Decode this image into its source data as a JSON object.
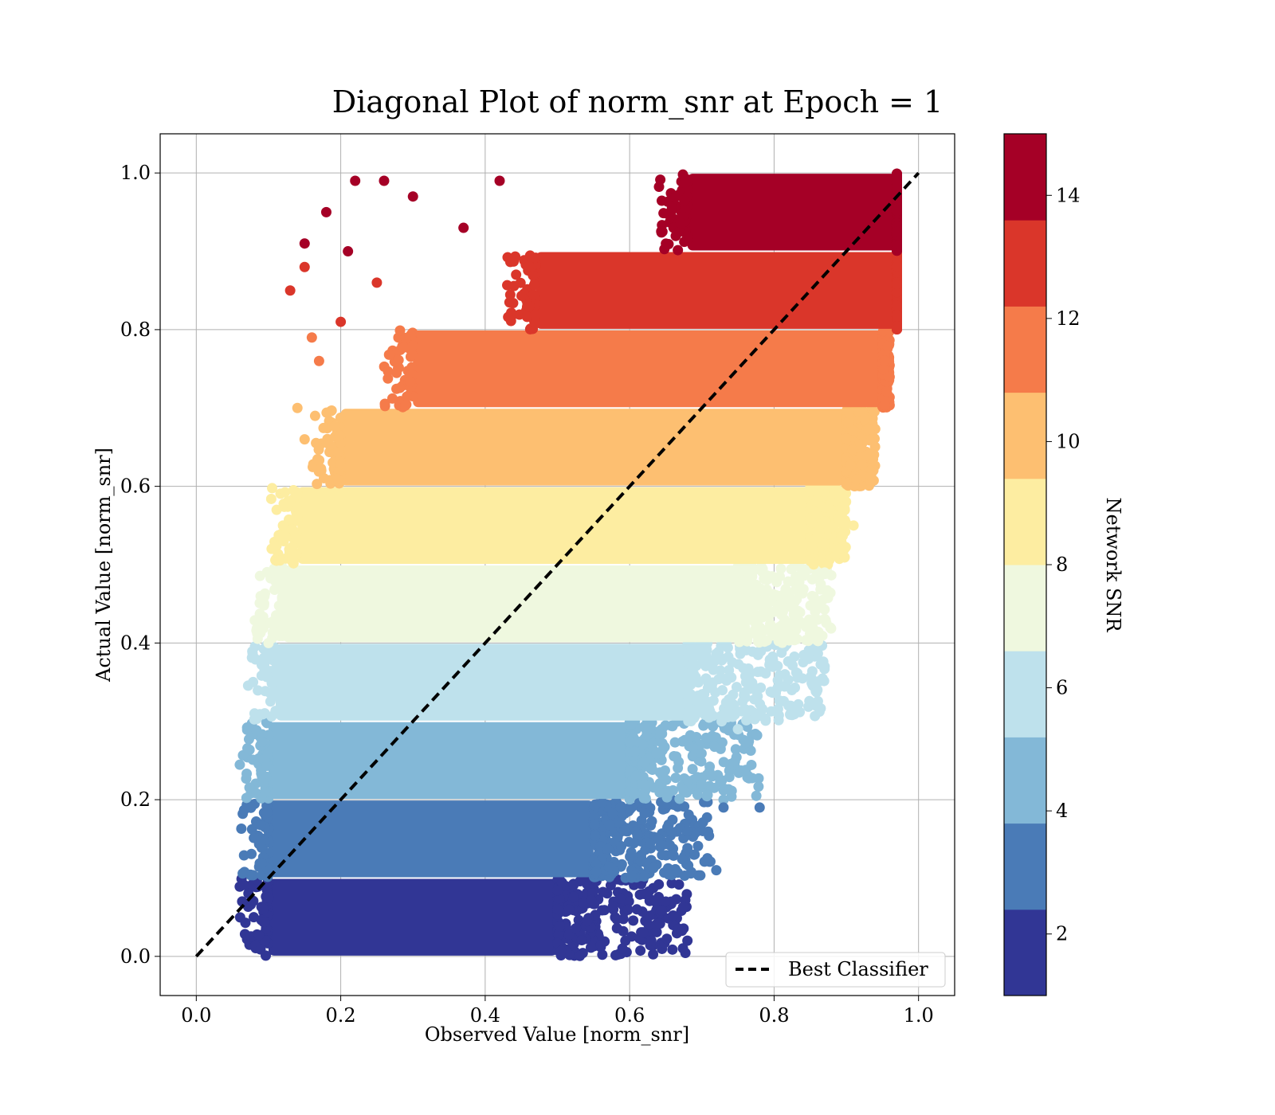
{
  "chart_data": {
    "type": "scatter",
    "title": "Diagonal Plot of norm_snr at Epoch = 1",
    "xlabel": "Observed Value [norm_snr]",
    "ylabel": "Actual Value [norm_snr]",
    "xlim": [
      -0.05,
      1.05
    ],
    "ylim": [
      -0.05,
      1.05
    ],
    "xticks": [
      0.0,
      0.2,
      0.4,
      0.6,
      0.8,
      1.0
    ],
    "xtick_labels": [
      "0.0",
      "0.2",
      "0.4",
      "0.6",
      "0.8",
      "1.0"
    ],
    "yticks": [
      0.0,
      0.2,
      0.4,
      0.6,
      0.8,
      1.0
    ],
    "ytick_labels": [
      "0.0",
      "0.2",
      "0.4",
      "0.6",
      "0.8",
      "1.0"
    ],
    "grid": true,
    "legend": {
      "position": "lower-right",
      "entries": [
        "Best Classifier"
      ]
    },
    "reference_line": {
      "name": "Best Classifier",
      "x": [
        0.0,
        1.0
      ],
      "y": [
        0.0,
        1.0
      ],
      "style": "dashed",
      "color": "#000000"
    },
    "colorbar": {
      "label": "Network SNR",
      "range": [
        1,
        15
      ],
      "ticks": [
        2,
        4,
        6,
        8,
        10,
        12,
        14
      ],
      "tick_labels": [
        "2",
        "4",
        "6",
        "8",
        "10",
        "12",
        "14"
      ],
      "colors": [
        "#313695",
        "#4a7bb7",
        "#83b8d7",
        "#bee1ec",
        "#eff8df",
        "#fdeda1",
        "#fdbf71",
        "#f57b4a",
        "#da362a",
        "#a50026"
      ]
    },
    "bands": [
      {
        "y": [
          0.0,
          0.1
        ],
        "x_dense": [
          0.1,
          0.5
        ],
        "x_sparse_max": 0.68,
        "color": "#313695"
      },
      {
        "y": [
          0.1,
          0.2
        ],
        "x_dense": [
          0.1,
          0.55
        ],
        "x_sparse_max": 0.72,
        "color": "#4a7bb7"
      },
      {
        "y": [
          0.2,
          0.3
        ],
        "x_dense": [
          0.1,
          0.6
        ],
        "x_sparse_max": 0.78,
        "color": "#83b8d7"
      },
      {
        "y": [
          0.3,
          0.4
        ],
        "x_dense": [
          0.11,
          0.68
        ],
        "x_sparse_max": 0.87,
        "color": "#bee1ec"
      },
      {
        "y": [
          0.4,
          0.5
        ],
        "x_dense": [
          0.12,
          0.75
        ],
        "x_sparse_max": 0.88,
        "color": "#eff8df"
      },
      {
        "y": [
          0.5,
          0.6
        ],
        "x_dense": [
          0.14,
          0.85
        ],
        "x_sparse_max": 0.9,
        "color": "#fdeda1"
      },
      {
        "y": [
          0.6,
          0.7
        ],
        "x_dense": [
          0.2,
          0.9
        ],
        "x_sparse_max": 0.94,
        "color": "#fdbf71"
      },
      {
        "y": [
          0.7,
          0.8
        ],
        "x_dense": [
          0.3,
          0.95
        ],
        "x_sparse_max": 0.96,
        "color": "#f57b4a"
      },
      {
        "y": [
          0.8,
          0.9
        ],
        "x_dense": [
          0.47,
          0.97
        ],
        "x_sparse_max": 0.97,
        "color": "#da362a"
      },
      {
        "y": [
          0.9,
          1.0
        ],
        "x_dense": [
          0.68,
          0.97
        ],
        "x_sparse_max": 0.97,
        "color": "#a50026"
      }
    ],
    "sparse_points": [
      {
        "x": 0.13,
        "y": 0.85,
        "band": 8
      },
      {
        "x": 0.15,
        "y": 0.88,
        "band": 8
      },
      {
        "x": 0.2,
        "y": 0.81,
        "band": 8
      },
      {
        "x": 0.25,
        "y": 0.86,
        "band": 8
      },
      {
        "x": 0.18,
        "y": 0.95,
        "band": 9
      },
      {
        "x": 0.15,
        "y": 0.91,
        "band": 9
      },
      {
        "x": 0.22,
        "y": 0.99,
        "band": 9
      },
      {
        "x": 0.26,
        "y": 0.99,
        "band": 9
      },
      {
        "x": 0.3,
        "y": 0.97,
        "band": 9
      },
      {
        "x": 0.37,
        "y": 0.93,
        "band": 9
      },
      {
        "x": 0.42,
        "y": 0.99,
        "band": 9
      },
      {
        "x": 0.21,
        "y": 0.9,
        "band": 9
      },
      {
        "x": 0.16,
        "y": 0.79,
        "band": 7
      },
      {
        "x": 0.17,
        "y": 0.76,
        "band": 7
      },
      {
        "x": 0.14,
        "y": 0.7,
        "band": 6
      },
      {
        "x": 0.15,
        "y": 0.66,
        "band": 6
      },
      {
        "x": 0.13,
        "y": 0.58,
        "band": 5
      },
      {
        "x": 0.12,
        "y": 0.55,
        "band": 5
      },
      {
        "x": 0.11,
        "y": 0.48,
        "band": 4
      },
      {
        "x": 0.1,
        "y": 0.4,
        "band": 4
      },
      {
        "x": 0.91,
        "y": 0.55,
        "band": 5
      },
      {
        "x": 0.89,
        "y": 0.52,
        "band": 5
      },
      {
        "x": 0.87,
        "y": 0.49,
        "band": 4
      },
      {
        "x": 0.86,
        "y": 0.45,
        "band": 4
      },
      {
        "x": 0.82,
        "y": 0.42,
        "band": 4
      },
      {
        "x": 0.87,
        "y": 0.37,
        "band": 3
      },
      {
        "x": 0.86,
        "y": 0.34,
        "band": 3
      },
      {
        "x": 0.82,
        "y": 0.32,
        "band": 3
      },
      {
        "x": 0.75,
        "y": 0.29,
        "band": 3
      },
      {
        "x": 0.73,
        "y": 0.2,
        "band": 2
      },
      {
        "x": 0.7,
        "y": 0.22,
        "band": 2
      },
      {
        "x": 0.78,
        "y": 0.19,
        "band": 1
      },
      {
        "x": 0.73,
        "y": 0.19,
        "band": 1
      },
      {
        "x": 0.72,
        "y": 0.11,
        "band": 1
      },
      {
        "x": 0.69,
        "y": 0.13,
        "band": 1
      },
      {
        "x": 0.68,
        "y": 0.16,
        "band": 1
      },
      {
        "x": 0.64,
        "y": 0.15,
        "band": 1
      },
      {
        "x": 0.68,
        "y": 0.02,
        "band": 0
      },
      {
        "x": 0.65,
        "y": 0.07,
        "band": 0
      },
      {
        "x": 0.63,
        "y": 0.02,
        "band": 0
      },
      {
        "x": 0.59,
        "y": 0.01,
        "band": 0
      },
      {
        "x": 0.61,
        "y": 0.06,
        "band": 0
      }
    ]
  }
}
